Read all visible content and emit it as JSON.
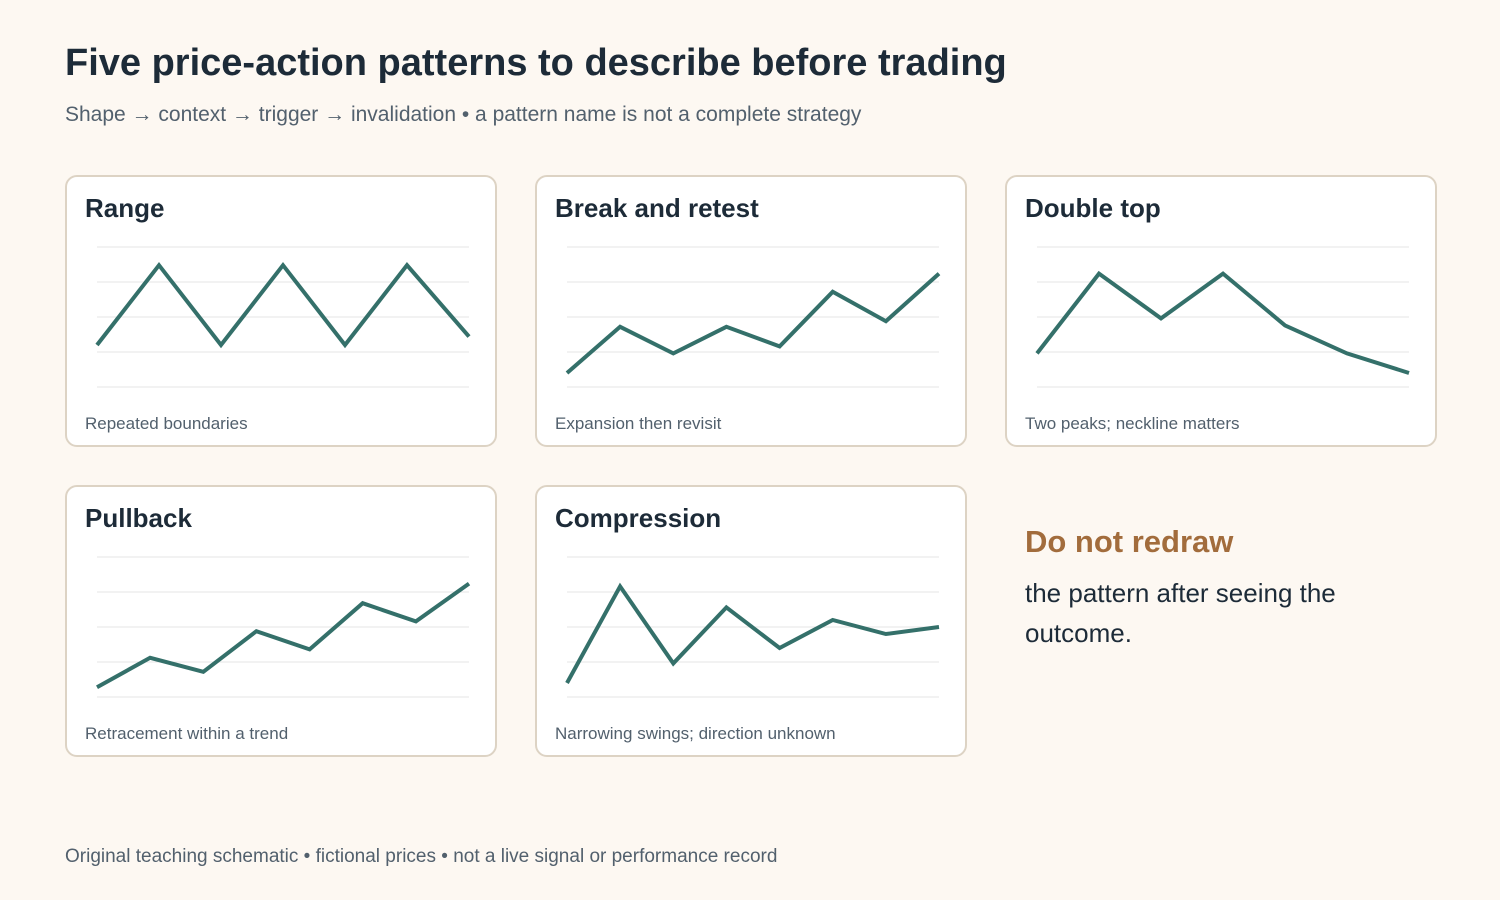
{
  "header": {
    "title": "Five price-action patterns to describe before trading",
    "subtitle": "Shape → context → trigger → invalidation • a pattern name is not a complete strategy"
  },
  "colors": {
    "line": "#34706a",
    "grid": "#e6e6e6",
    "accent": "#a26c3c"
  },
  "patterns": [
    {
      "title": "Range",
      "caption": "Repeated boundaries"
    },
    {
      "title": "Break and retest",
      "caption": "Expansion then revisit"
    },
    {
      "title": "Double top",
      "caption": "Two peaks; neckline matters"
    },
    {
      "title": "Pullback",
      "caption": "Retracement within a trend"
    },
    {
      "title": "Compression",
      "caption": "Narrowing swings; direction unknown"
    }
  ],
  "callout": {
    "heading": "Do not redraw",
    "body": "the pattern after seeing the outcome."
  },
  "footer": "Original teaching schematic • fictional prices • not a live signal or performance record",
  "chart_data": [
    {
      "type": "line",
      "title": "Range",
      "series": [
        {
          "values": [
            0.3,
            0.87,
            0.3,
            0.87,
            0.3,
            0.87,
            0.36
          ]
        }
      ],
      "ylim": [
        0,
        1
      ],
      "grid": true
    },
    {
      "type": "line",
      "title": "Break and retest",
      "series": [
        {
          "values": [
            0.1,
            0.43,
            0.24,
            0.43,
            0.29,
            0.68,
            0.47,
            0.81
          ]
        }
      ],
      "ylim": [
        0,
        1
      ],
      "grid": true
    },
    {
      "type": "line",
      "title": "Double top",
      "series": [
        {
          "values": [
            0.24,
            0.81,
            0.49,
            0.81,
            0.44,
            0.24,
            0.1
          ]
        }
      ],
      "ylim": [
        0,
        1
      ],
      "grid": true
    },
    {
      "type": "line",
      "title": "Pullback",
      "series": [
        {
          "values": [
            0.07,
            0.28,
            0.18,
            0.47,
            0.34,
            0.67,
            0.54,
            0.81
          ]
        }
      ],
      "ylim": [
        0,
        1
      ],
      "grid": true
    },
    {
      "type": "line",
      "title": "Compression",
      "series": [
        {
          "values": [
            0.1,
            0.79,
            0.24,
            0.64,
            0.35,
            0.55,
            0.45,
            0.5
          ]
        }
      ],
      "ylim": [
        0,
        1
      ],
      "grid": true
    }
  ]
}
